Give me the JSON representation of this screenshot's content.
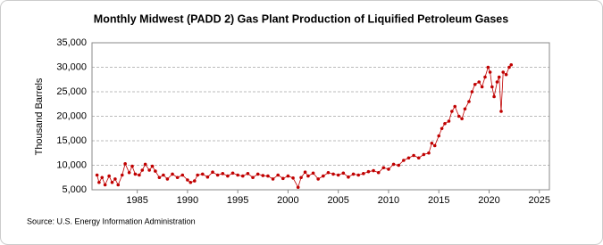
{
  "chart_data": {
    "type": "scatter",
    "title": "Monthly Midwest (PADD 2) Gas Plant Production of Liquified Petroleum Gases",
    "y_label": "Thousand Barrels",
    "source": "Source: U.S. Energy Information Administration",
    "color": "#c00000",
    "grid": true,
    "xlim": [
      1980.5,
      2026
    ],
    "xticks": [
      1985,
      1990,
      1995,
      2000,
      2005,
      2010,
      2015,
      2020,
      2025
    ],
    "ylim": [
      5000,
      35000
    ],
    "yticks": [
      {
        "value": 5000,
        "label": "5,000"
      },
      {
        "value": 10000,
        "label": "10,000"
      },
      {
        "value": 15000,
        "label": "15,000"
      },
      {
        "value": 20000,
        "label": "20,000"
      },
      {
        "value": 25000,
        "label": "25,000"
      },
      {
        "value": 30000,
        "label": "30,000"
      },
      {
        "value": 35000,
        "label": "35,000"
      }
    ],
    "x": [
      1981.0,
      1981.2,
      1981.5,
      1981.8,
      1982.2,
      1982.5,
      1982.8,
      1983.1,
      1983.5,
      1983.8,
      1984.2,
      1984.5,
      1984.8,
      1985.2,
      1985.5,
      1985.8,
      1986.2,
      1986.5,
      1986.8,
      1987.2,
      1987.6,
      1988.0,
      1988.5,
      1989.0,
      1989.5,
      1990.0,
      1990.3,
      1990.7,
      1991.0,
      1991.5,
      1992.0,
      1992.5,
      1993.0,
      1993.5,
      1994.0,
      1994.5,
      1995.0,
      1995.5,
      1996.0,
      1996.5,
      1997.0,
      1997.5,
      1998.0,
      1998.5,
      1999.0,
      1999.5,
      2000.0,
      2000.5,
      2001.0,
      2001.3,
      2001.7,
      2002.0,
      2002.5,
      2003.0,
      2003.5,
      2004.0,
      2004.5,
      2005.0,
      2005.5,
      2006.0,
      2006.5,
      2007.0,
      2007.5,
      2008.0,
      2008.5,
      2009.0,
      2009.5,
      2010.0,
      2010.5,
      2011.0,
      2011.5,
      2012.0,
      2012.5,
      2013.0,
      2013.5,
      2014.0,
      2014.3,
      2014.6,
      2015.0,
      2015.3,
      2015.6,
      2016.0,
      2016.3,
      2016.6,
      2017.0,
      2017.3,
      2017.6,
      2018.0,
      2018.3,
      2018.6,
      2019.0,
      2019.3,
      2019.6,
      2019.9,
      2020.1,
      2020.3,
      2020.5,
      2020.8,
      2021.0,
      2021.2,
      2021.4,
      2021.7,
      2022.0,
      2022.2
    ],
    "values": [
      8000,
      6500,
      7500,
      6000,
      7800,
      6500,
      7200,
      6000,
      8000,
      10300,
      8500,
      9800,
      8200,
      8000,
      9000,
      10200,
      9000,
      9800,
      8800,
      7500,
      8000,
      7200,
      8200,
      7500,
      8000,
      7000,
      6500,
      6800,
      8000,
      8200,
      7600,
      8600,
      8000,
      8300,
      7800,
      8400,
      8000,
      7800,
      8300,
      7500,
      8200,
      7900,
      7800,
      7200,
      8000,
      7300,
      7800,
      7400,
      5500,
      7500,
      8600,
      7800,
      8400,
      7200,
      7800,
      8500,
      8200,
      8000,
      8400,
      7600,
      8200,
      8000,
      8300,
      8700,
      8900,
      8500,
      9500,
      9200,
      10200,
      10000,
      11000,
      11500,
      12000,
      11500,
      12200,
      12500,
      14500,
      14000,
      16000,
      17500,
      18500,
      19000,
      21000,
      22000,
      20000,
      19500,
      21500,
      23000,
      25000,
      26500,
      27000,
      26000,
      28000,
      30000,
      29000,
      26000,
      24000,
      27000,
      28000,
      21000,
      29000,
      28500,
      30000,
      30500
    ]
  }
}
